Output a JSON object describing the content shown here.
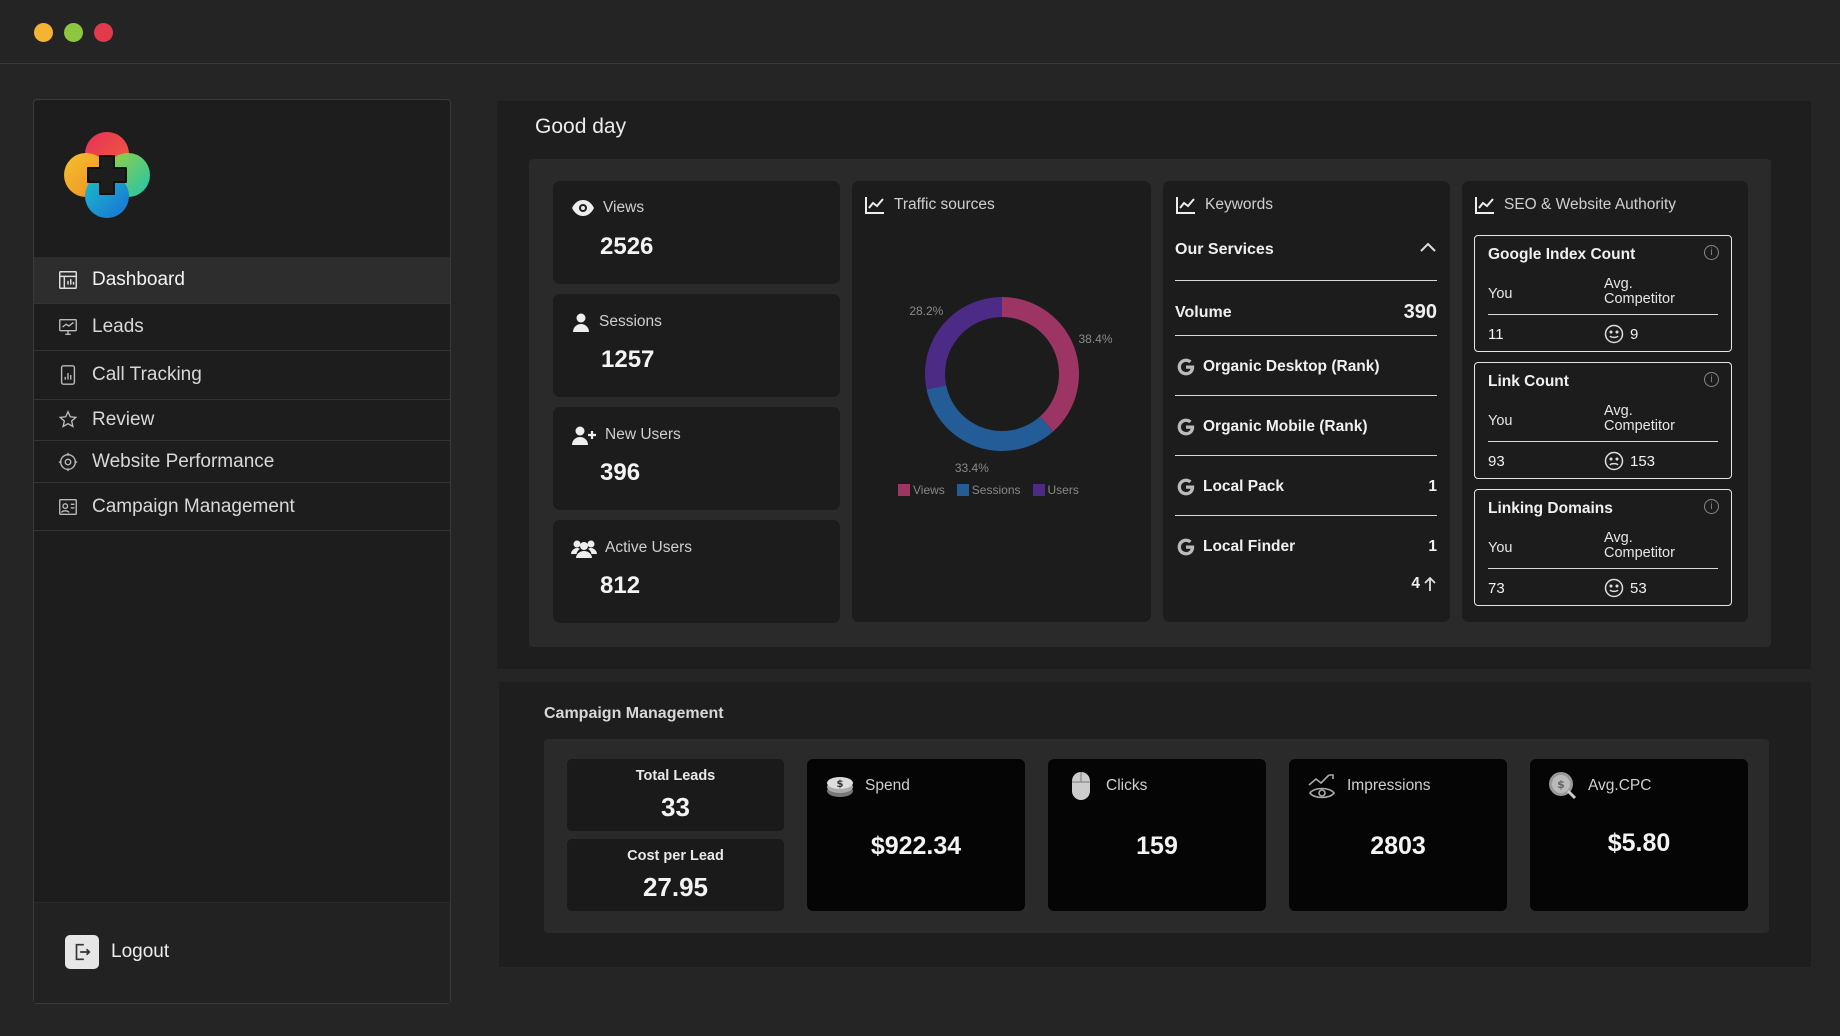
{
  "window": {
    "title_controls": [
      "minimize",
      "maximize",
      "close"
    ]
  },
  "sidebar": {
    "items": [
      {
        "label": "Dashboard",
        "icon": "dashboard-icon",
        "active": true
      },
      {
        "label": "Leads",
        "icon": "leads-icon"
      },
      {
        "label": "Call Tracking",
        "icon": "call-tracking-icon"
      },
      {
        "label": "Review",
        "icon": "review-icon"
      },
      {
        "label": "Website Performance",
        "icon": "website-performance-icon"
      },
      {
        "label": "Campaign Management",
        "icon": "campaign-management-icon"
      }
    ],
    "logout_label": "Logout"
  },
  "main": {
    "greeting": "Good day",
    "stats": [
      {
        "label": "Views",
        "value": "2526",
        "icon": "eye-icon"
      },
      {
        "label": "Sessions",
        "value": "1257",
        "icon": "user-icon"
      },
      {
        "label": "New Users",
        "value": "396",
        "icon": "user-plus-icon"
      },
      {
        "label": "Active Users",
        "value": "812",
        "icon": "users-icon"
      }
    ],
    "traffic": {
      "title": "Traffic sources",
      "legend": [
        "Views",
        "Sessions",
        "Users"
      ],
      "colors": {
        "views": "#9c3563",
        "sessions": "#235c96",
        "users": "#4c2b86"
      }
    },
    "keywords": {
      "title": "Keywords",
      "section": "Our Services",
      "volume_label": "Volume",
      "volume_value": "390",
      "rows": [
        {
          "label": "Organic Desktop (Rank)",
          "value": ""
        },
        {
          "label": "Organic Mobile (Rank)",
          "value": ""
        },
        {
          "label": "Local Pack",
          "value": "1"
        },
        {
          "label": "Local Finder",
          "value": "1"
        }
      ],
      "change": "4"
    },
    "seo": {
      "title": "SEO & Website Authority",
      "you_label": "You",
      "competitor_label": "Avg. Competitor",
      "boxes": [
        {
          "title": "Google Index Count",
          "you": "11",
          "competitor": "9",
          "face": "smile"
        },
        {
          "title": "Link Count",
          "you": "93",
          "competitor": "153",
          "face": "frown"
        },
        {
          "title": "Linking Domains",
          "you": "73",
          "competitor": "53",
          "face": "smile"
        }
      ]
    }
  },
  "chart_data": {
    "type": "pie",
    "variant": "donut",
    "title": "Traffic sources",
    "categories": [
      "Views",
      "Sessions",
      "Users"
    ],
    "values": [
      38.4,
      33.4,
      28.2
    ],
    "labels": [
      "38.4%",
      "33.4%",
      "28.2%"
    ],
    "legend_placement": "bottom"
  },
  "campaign": {
    "title": "Campaign Management",
    "total_leads_label": "Total Leads",
    "total_leads": "33",
    "cost_per_lead_label": "Cost per Lead",
    "cost_per_lead": "27.95",
    "metrics": [
      {
        "label": "Spend",
        "value": "$922.34",
        "icon": "money-icon"
      },
      {
        "label": "Clicks",
        "value": "159",
        "icon": "mouse-icon"
      },
      {
        "label": "Impressions",
        "value": "2803",
        "icon": "impressions-icon"
      },
      {
        "label": "Avg.CPC",
        "value": "$5.80",
        "icon": "coin-icon"
      }
    ]
  }
}
